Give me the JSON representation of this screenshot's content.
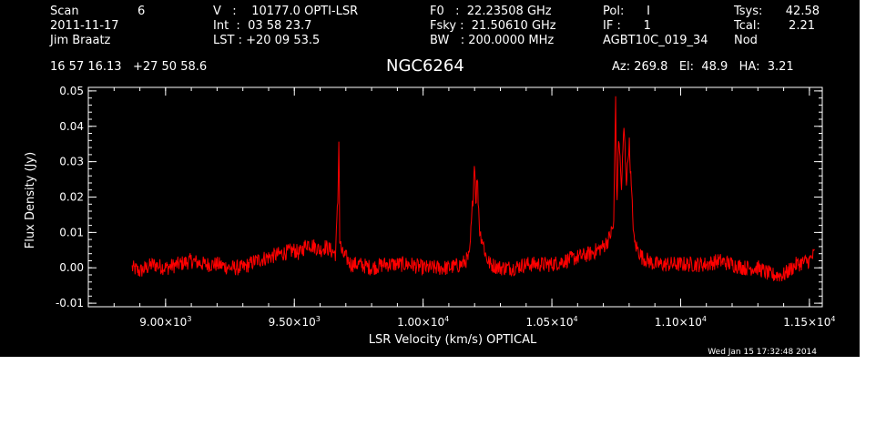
{
  "header": {
    "scan_label": "Scan",
    "scan_value": "6",
    "date": "2011-11-17",
    "observer": "Jim Braatz",
    "v_line": "V   :    10177.0 OPTI-LSR",
    "int_line": "Int  :  03 58 23.7",
    "lst_line": "LST : +20 09 53.5",
    "f0_line": "F0   :  22.23508 GHz",
    "fsky_line": "Fsky :  21.50610 GHz",
    "bw_line": "BW   : 200.0000 MHz",
    "pol_line": "Pol:      I",
    "if_line": "IF :      1",
    "project": "AGBT10C_019_34",
    "tsys_label": "Tsys:",
    "tsys_value": "42.58",
    "tcal_label": "Tcal:",
    "tcal_value": "2.21",
    "procedure": "Nod",
    "coords": "16 57 16.13   +27 50 58.6",
    "source": "NGC6264",
    "az_el_ha": "Az: 269.8   El:  48.9   HA:  3.21"
  },
  "footer": {
    "timestamp": "Wed Jan 15 17:32:48 2014"
  },
  "colors": {
    "background": "#000000",
    "axes": "#ffffff",
    "series": "#ff0000"
  },
  "chart_data": {
    "type": "line",
    "xlabel": "LSR Velocity (km/s) OPTICAL",
    "ylabel": "Flux Density (Jy)",
    "xlim": [
      8700,
      11550
    ],
    "ylim": [
      -0.011,
      0.051
    ],
    "x_ticks": [
      9000,
      9500,
      10000,
      10500,
      11000,
      11500
    ],
    "x_tick_labels": [
      {
        "mant": "9.00×10",
        "exp": "3"
      },
      {
        "mant": "9.50×10",
        "exp": "3"
      },
      {
        "mant": "1.00×10",
        "exp": "4"
      },
      {
        "mant": "1.05×10",
        "exp": "4"
      },
      {
        "mant": "1.10×10",
        "exp": "4"
      },
      {
        "mant": "1.15×10",
        "exp": "4"
      }
    ],
    "x_minor_step": 100,
    "y_ticks": [
      -0.01,
      0.0,
      0.01,
      0.02,
      0.03,
      0.04,
      0.05
    ],
    "y_tick_labels": [
      "-0.01",
      "0.00",
      "0.01",
      "0.02",
      "0.03",
      "0.04",
      "0.05"
    ],
    "y_minor_step": 0.002,
    "grid": false,
    "series": [
      {
        "x": [
          8870,
          8900,
          8950,
          9000,
          9050,
          9100,
          9150,
          9200,
          9250,
          9300,
          9350,
          9400,
          9450,
          9500,
          9520,
          9550,
          9580,
          9600,
          9620,
          9640,
          9660,
          9670,
          9673,
          9676,
          9685,
          9700,
          9720,
          9750,
          9800,
          9850,
          9900,
          9950,
          10000,
          10050,
          10100,
          10150,
          10180,
          10195,
          10200,
          10205,
          10210,
          10220,
          10230,
          10245,
          10260,
          10300,
          10350,
          10400,
          10450,
          10500,
          10550,
          10600,
          10650,
          10700,
          10720,
          10740,
          10748,
          10752,
          10760,
          10770,
          10780,
          10790,
          10800,
          10810,
          10820,
          10850,
          10900,
          10950,
          11000,
          11050,
          11100,
          11150,
          11200,
          11250,
          11300,
          11350,
          11400,
          11450,
          11500,
          11520
        ],
        "y": [
          0.0,
          -0.001,
          0.001,
          0.0,
          0.001,
          0.002,
          0.001,
          0.001,
          0.0,
          0.0,
          0.002,
          0.003,
          0.004,
          0.005,
          0.004,
          0.007,
          0.006,
          0.005,
          0.006,
          0.005,
          0.004,
          0.021,
          0.04,
          0.008,
          0.004,
          0.003,
          0.001,
          0.001,
          0.0,
          0.001,
          0.001,
          0.001,
          0.0,
          0.0,
          0.0,
          0.001,
          0.003,
          0.022,
          0.031,
          0.018,
          0.026,
          0.01,
          0.008,
          0.003,
          0.001,
          0.0,
          0.0,
          0.001,
          0.001,
          0.001,
          0.002,
          0.003,
          0.004,
          0.006,
          0.008,
          0.012,
          0.05,
          0.016,
          0.038,
          0.022,
          0.04,
          0.024,
          0.036,
          0.02,
          0.007,
          0.003,
          0.001,
          0.001,
          0.001,
          0.001,
          0.001,
          0.002,
          0.001,
          0.0,
          0.0,
          -0.002,
          -0.002,
          0.001,
          0.002,
          0.004
        ]
      }
    ]
  }
}
